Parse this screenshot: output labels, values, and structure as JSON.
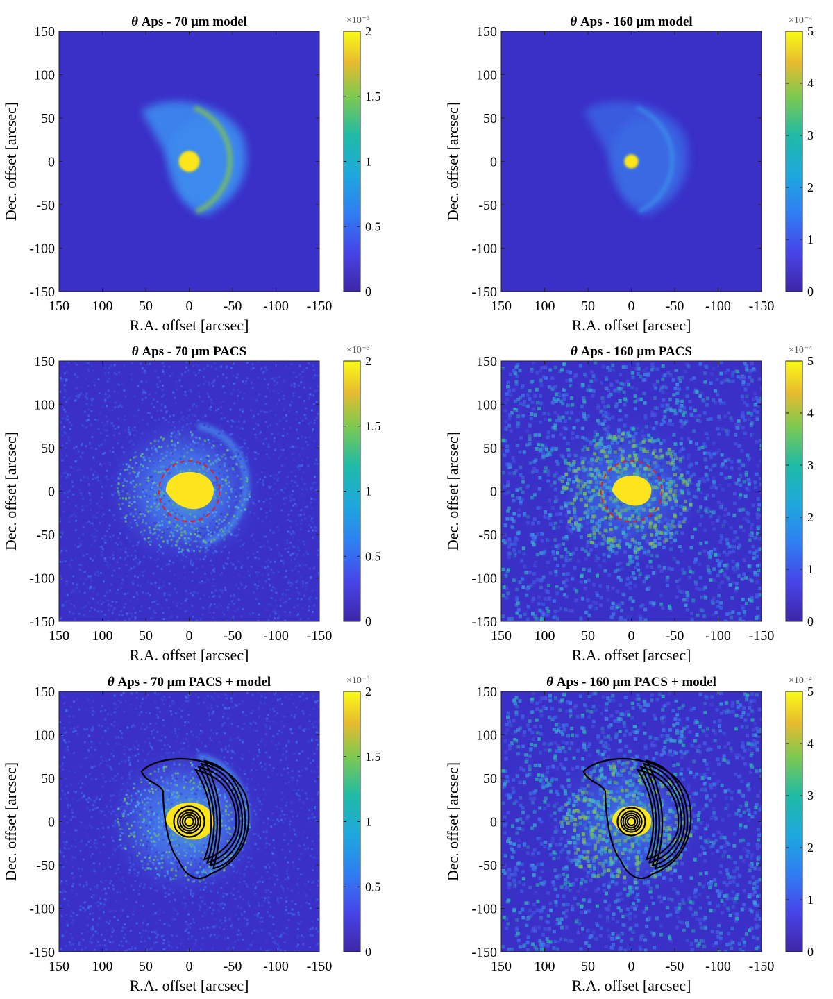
{
  "chart_data": [
    {
      "type": "heatmap",
      "title_theta": "θ",
      "title": "Aps - 70 μm model",
      "xlabel": "R.A. offset [arcsec]",
      "ylabel": "Dec. offset [arcsec]",
      "xlim": [
        150,
        -150
      ],
      "ylim": [
        -150,
        150
      ],
      "xticks": [
        "150",
        "100",
        "50",
        "0",
        "-50",
        "-100",
        "-150"
      ],
      "yticks": [
        "150",
        "100",
        "50",
        "0",
        "-50",
        "-100",
        "-150"
      ],
      "colorbar": {
        "ticks": [
          "2",
          "1.5",
          "1",
          "0.5",
          "0"
        ],
        "min": 0,
        "max": 2,
        "exponent": "×10⁻³"
      },
      "features": {
        "source": "bright central point source",
        "arc": "bow-shaped shell to the west, radius ~65 arcsec",
        "noise": false,
        "contours": false,
        "aperture_circle": false
      }
    },
    {
      "type": "heatmap",
      "title_theta": "θ",
      "title": "Aps - 160 μm model",
      "xlabel": "R.A. offset [arcsec]",
      "ylabel": "Dec. offset [arcsec]",
      "xlim": [
        150,
        -150
      ],
      "ylim": [
        -150,
        150
      ],
      "xticks": [
        "150",
        "100",
        "50",
        "0",
        "-50",
        "-100",
        "-150"
      ],
      "yticks": [
        "150",
        "100",
        "50",
        "0",
        "-50",
        "-100",
        "-150"
      ],
      "colorbar": {
        "ticks": [
          "5",
          "4",
          "3",
          "2",
          "1",
          "0"
        ],
        "min": 0,
        "max": 5,
        "exponent": "×10⁻⁴"
      },
      "features": {
        "source": "compact central point source",
        "arc": "faint bow-shaped shell to the west",
        "noise": false,
        "contours": false,
        "aperture_circle": false
      }
    },
    {
      "type": "heatmap",
      "title_theta": "θ",
      "title": "Aps - 70 μm PACS",
      "xlabel": "R.A. offset [arcsec]",
      "ylabel": "Dec. offset [arcsec]",
      "xlim": [
        150,
        -150
      ],
      "ylim": [
        -150,
        150
      ],
      "xticks": [
        "150",
        "100",
        "50",
        "0",
        "-50",
        "-100",
        "-150"
      ],
      "yticks": [
        "150",
        "100",
        "50",
        "0",
        "-50",
        "-100",
        "-150"
      ],
      "colorbar": {
        "ticks": [
          "2",
          "1.5",
          "1",
          "0.5",
          "0"
        ],
        "min": 0,
        "max": 2,
        "exponent": "×10⁻³"
      },
      "features": {
        "source": "saturated central source",
        "arc": "diffuse emission with western shell",
        "noise": true,
        "contours": false,
        "aperture_circle": true,
        "aperture_radius_arcsec": 35
      }
    },
    {
      "type": "heatmap",
      "title_theta": "θ",
      "title": "Aps - 160 μm PACS",
      "xlabel": "R.A. offset [arcsec]",
      "ylabel": "Dec. offset [arcsec]",
      "xlim": [
        150,
        -150
      ],
      "ylim": [
        -150,
        150
      ],
      "xticks": [
        "150",
        "100",
        "50",
        "0",
        "-50",
        "-100",
        "-150"
      ],
      "yticks": [
        "150",
        "100",
        "50",
        "0",
        "-50",
        "-100",
        "-150"
      ],
      "colorbar": {
        "ticks": [
          "5",
          "4",
          "3",
          "2",
          "1",
          "0"
        ],
        "min": 0,
        "max": 5,
        "exponent": "×10⁻⁴"
      },
      "features": {
        "source": "saturated central source",
        "arc": "noisy diffuse emission",
        "noise": true,
        "contours": false,
        "aperture_circle": true,
        "aperture_radius_arcsec": 35
      }
    },
    {
      "type": "heatmap",
      "title_theta": "θ",
      "title": "Aps - 70 μm PACS + model",
      "xlabel": "R.A. offset [arcsec]",
      "ylabel": "Dec. offset [arcsec]",
      "xlim": [
        150,
        -150
      ],
      "ylim": [
        -150,
        150
      ],
      "xticks": [
        "150",
        "100",
        "50",
        "0",
        "-50",
        "-100",
        "-150"
      ],
      "yticks": [
        "150",
        "100",
        "50",
        "0",
        "-50",
        "-100",
        "-150"
      ],
      "colorbar": {
        "ticks": [
          "2",
          "1.5",
          "1",
          "0.5",
          "0"
        ],
        "min": 0,
        "max": 2,
        "exponent": "×10⁻³"
      },
      "features": {
        "source": "saturated central source",
        "arc": "diffuse emission",
        "noise": true,
        "contours": true,
        "aperture_circle": false
      }
    },
    {
      "type": "heatmap",
      "title_theta": "θ",
      "title": "Aps - 160 μm PACS + model",
      "xlabel": "R.A. offset [arcsec]",
      "ylabel": "Dec. offset [arcsec]",
      "xlim": [
        150,
        -150
      ],
      "ylim": [
        -150,
        150
      ],
      "xticks": [
        "150",
        "100",
        "50",
        "0",
        "-50",
        "-100",
        "-150"
      ],
      "yticks": [
        "150",
        "100",
        "50",
        "0",
        "-50",
        "-100",
        "-150"
      ],
      "colorbar": {
        "ticks": [
          "5",
          "4",
          "3",
          "2",
          "1",
          "0"
        ],
        "min": 0,
        "max": 5,
        "exponent": "×10⁻⁴"
      },
      "features": {
        "source": "saturated central source",
        "arc": "noisy diffuse emission",
        "noise": true,
        "contours": true,
        "aperture_circle": false
      }
    }
  ],
  "colors": {
    "background": "#3a2fc7",
    "mid": "#3b8df0",
    "green": "#7cc05a",
    "yellow": "#fde51e",
    "aperture": "#e02020",
    "contour": "#000000"
  }
}
